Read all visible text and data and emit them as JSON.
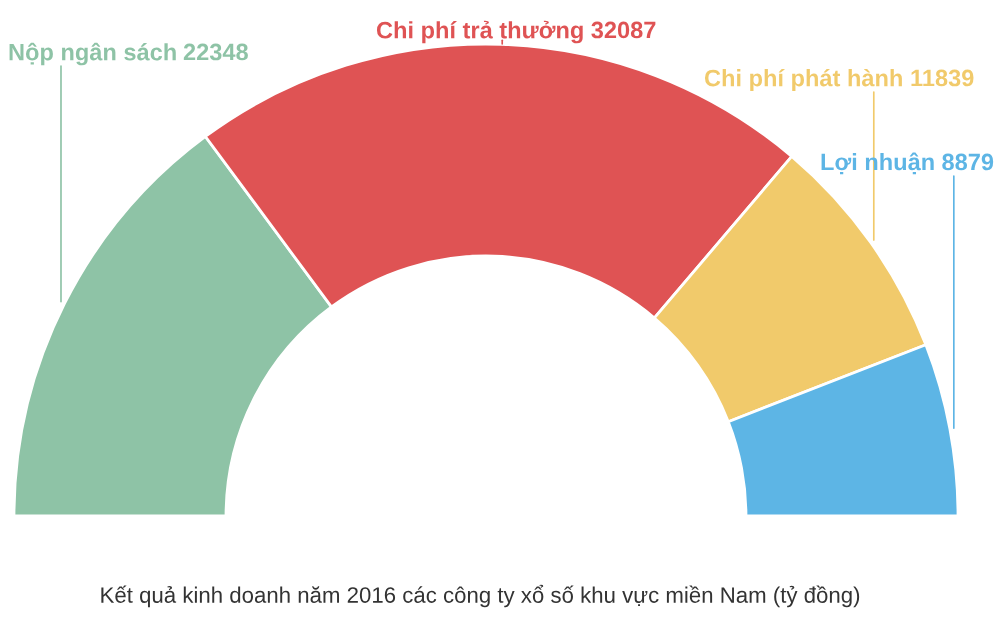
{
  "chart_data": {
    "type": "donut",
    "categories": [
      "Nộp ngân sách",
      "Chi phí trả thưởng",
      "Chi phí phát hành",
      "Lợi nhuận"
    ],
    "values": [
      22348,
      32087,
      11839,
      8879
    ],
    "colors": [
      "#8ec3a6",
      "#df5354",
      "#f1ca6b",
      "#5db5e5"
    ],
    "data_labels": true,
    "annotations": [
      "Kết quả kinh doanh năm 2016 các công ty xổ số khu vực miền Nam (tỷ đồng)"
    ]
  }
}
